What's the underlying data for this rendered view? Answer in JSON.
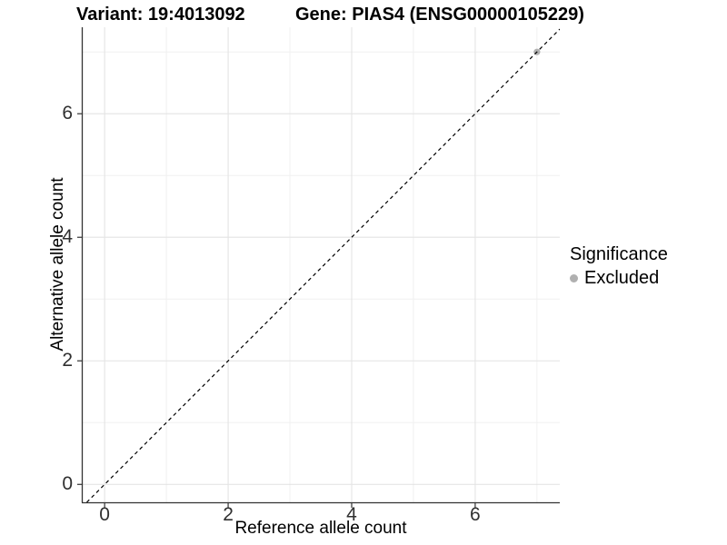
{
  "chart_data": {
    "type": "scatter",
    "title_left": "Variant: 19:4013092",
    "title_right": "Gene: PIAS4 (ENSG00000105229)",
    "xlabel": "Reference allele count",
    "ylabel": "Alternative allele count",
    "xlim": [
      -0.37,
      7.37
    ],
    "ylim": [
      -0.29,
      7.4
    ],
    "x_ticks": [
      0,
      2,
      4,
      6
    ],
    "y_ticks": [
      0,
      2,
      4,
      6
    ],
    "x_minor_ticks": [
      1,
      3,
      5,
      7
    ],
    "y_minor_ticks": [
      1,
      3,
      5,
      7
    ],
    "grid": true,
    "identity_line": {
      "equation": "y = x",
      "style": "dashed",
      "color": "#000000"
    },
    "points": [
      {
        "x": 7,
        "y": 7,
        "significance": "Excluded"
      }
    ],
    "legend": {
      "title": "Significance",
      "position": "right",
      "items": [
        {
          "label": "Excluded",
          "color": "#b0b0b0"
        }
      ]
    },
    "colors": {
      "background": "#ffffff",
      "grid_major": "#e4e4e4",
      "grid_minor": "#f0f0f0",
      "axis_line": "#333333",
      "tick_label": "#303030",
      "point_excluded": "#b0b0b0"
    }
  }
}
